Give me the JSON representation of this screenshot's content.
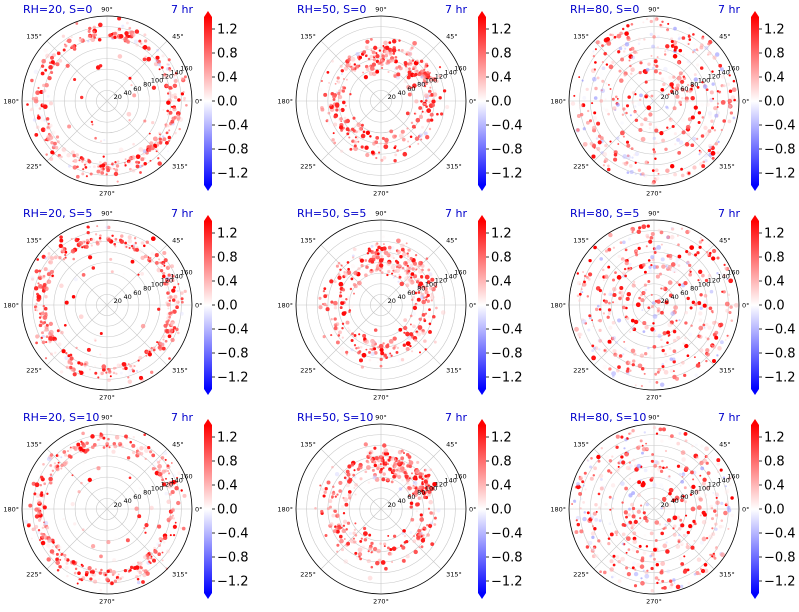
{
  "figure": {
    "title_color": "#0000cc",
    "time_label": "7 hr",
    "angle_labels": [
      "0°",
      "45°",
      "90°",
      "135°",
      "180°",
      "225°",
      "270°",
      "315°"
    ],
    "radial_labels": [
      "20",
      "40",
      "60",
      "80",
      "100",
      "120",
      "140",
      "160"
    ],
    "colorbar_ticks": [
      "1.2",
      "0.8",
      "0.4",
      "0.0",
      "−0.4",
      "−0.8",
      "−1.2"
    ],
    "colormap": {
      "low": "#0000ff",
      "mid": "#ffffff",
      "high": "#ff0000"
    }
  },
  "chart_data": [
    {
      "type": "polar-scatter",
      "title": "RH=20, S=0",
      "time": "7 hr",
      "rmax": 160,
      "clim": [
        -1.4,
        1.4
      ],
      "rh": 20,
      "s": 0,
      "pattern": "outer-ring"
    },
    {
      "type": "polar-scatter",
      "title": "RH=50, S=0",
      "time": "7 hr",
      "rmax": 160,
      "clim": [
        -1.4,
        1.4
      ],
      "rh": 50,
      "s": 0,
      "pattern": "mid-ring"
    },
    {
      "type": "polar-scatter",
      "title": "RH=80, S=0",
      "time": "7 hr",
      "rmax": 160,
      "clim": [
        -1.4,
        1.4
      ],
      "rh": 80,
      "s": 0,
      "pattern": "filled"
    },
    {
      "type": "polar-scatter",
      "title": "RH=20, S=5",
      "time": "7 hr",
      "rmax": 160,
      "clim": [
        -1.4,
        1.4
      ],
      "rh": 20,
      "s": 5,
      "pattern": "outer-ring"
    },
    {
      "type": "polar-scatter",
      "title": "RH=50, S=5",
      "time": "7 hr",
      "rmax": 160,
      "clim": [
        -1.4,
        1.4
      ],
      "rh": 50,
      "s": 5,
      "pattern": "mid-ring"
    },
    {
      "type": "polar-scatter",
      "title": "RH=80, S=5",
      "time": "7 hr",
      "rmax": 160,
      "clim": [
        -1.4,
        1.4
      ],
      "rh": 80,
      "s": 5,
      "pattern": "filled"
    },
    {
      "type": "polar-scatter",
      "title": "RH=20, S=10",
      "time": "7 hr",
      "rmax": 160,
      "clim": [
        -1.4,
        1.4
      ],
      "rh": 20,
      "s": 10,
      "pattern": "outer-ring"
    },
    {
      "type": "polar-scatter",
      "title": "RH=50, S=10",
      "time": "7 hr",
      "rmax": 160,
      "clim": [
        -1.4,
        1.4
      ],
      "rh": 50,
      "s": 10,
      "pattern": "mid-ring"
    },
    {
      "type": "polar-scatter",
      "title": "RH=80, S=10",
      "time": "7 hr",
      "rmax": 160,
      "clim": [
        -1.4,
        1.4
      ],
      "rh": 80,
      "s": 10,
      "pattern": "filled"
    }
  ]
}
